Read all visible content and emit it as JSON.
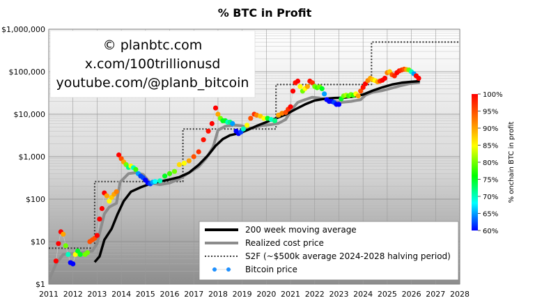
{
  "chart_data": {
    "type": "scatter",
    "title": "% BTC in Profit",
    "y_scale": "log",
    "xlim": [
      2011,
      2028
    ],
    "ylim": [
      1,
      1000000
    ],
    "x_ticks": [
      "2011",
      "2012",
      "2013",
      "2014",
      "2015",
      "2016",
      "2017",
      "2018",
      "2019",
      "2020",
      "2021",
      "2022",
      "2023",
      "2024",
      "2025",
      "2026",
      "2027",
      "2028"
    ],
    "y_ticks": [
      {
        "value": 1,
        "label": "$1"
      },
      {
        "value": 10,
        "label": "$10"
      },
      {
        "value": 100,
        "label": "$100"
      },
      {
        "value": 1000,
        "label": "$1,000"
      },
      {
        "value": 10000,
        "label": "$10,000"
      },
      {
        "value": 100000,
        "label": "$100,000"
      },
      {
        "value": 1000000,
        "label": "$1,000,000"
      }
    ],
    "watermark": [
      "© planbtc.com",
      "x.com/100trillionusd",
      "youtube.com/@planb_bitcoin"
    ],
    "legend": {
      "placement": "bottom-right",
      "entries": [
        {
          "label": "200 week moving average",
          "style": "thick-black-line",
          "color": "#000000"
        },
        {
          "label": "Realized cost price",
          "style": "thick-gray-line",
          "color": "#8c8c8c"
        },
        {
          "label": "S2F (~$500k average 2024-2028 halving period)",
          "style": "dotted-line",
          "color": "#333333"
        },
        {
          "label": "Bitcoin price",
          "style": "dots",
          "color": "#1e90ff"
        }
      ]
    },
    "colorbar": {
      "label": "% onchain BTC in profit",
      "range": [
        60,
        100
      ],
      "tick_labels": [
        "100%",
        "95%",
        "90%",
        "85%",
        "80%",
        "75%",
        "70%",
        "65%",
        "60%"
      ],
      "colors": [
        "#ff0000",
        "#ff8000",
        "#ffff00",
        "#00ff00",
        "#00ffff",
        "#0000ff"
      ]
    },
    "series": [
      {
        "name": "200 week moving average",
        "x": [
          2012.9,
          2013.1,
          2013.3,
          2013.6,
          2013.85,
          2014.1,
          2014.4,
          2014.8,
          2015.2,
          2015.6,
          2016.0,
          2016.4,
          2016.8,
          2017.2,
          2017.6,
          2017.9,
          2018.2,
          2018.5,
          2018.9,
          2019.2,
          2019.6,
          2020.0,
          2020.4,
          2020.8,
          2021.2,
          2021.6,
          2022.0,
          2022.4,
          2022.8,
          2023.2,
          2023.6,
          2024.0,
          2024.4,
          2024.8,
          2025.2,
          2025.6,
          2026.0,
          2026.35
        ],
        "y": [
          3.3,
          4.5,
          11,
          20,
          45,
          90,
          150,
          190,
          230,
          260,
          290,
          330,
          420,
          640,
          1100,
          1800,
          2600,
          3200,
          3600,
          4200,
          5300,
          6500,
          8000,
          9800,
          13000,
          17000,
          21000,
          23000,
          24000,
          24500,
          26000,
          29000,
          36000,
          43000,
          50000,
          55000,
          58000,
          60000
        ]
      },
      {
        "name": "Realized cost price",
        "x": [
          2011.0,
          2011.3,
          2011.6,
          2012.0,
          2012.4,
          2012.8,
          2013.0,
          2013.3,
          2013.5,
          2013.8,
          2013.95,
          2014.3,
          2014.6,
          2014.9,
          2015.2,
          2015.6,
          2016.0,
          2016.4,
          2016.8,
          2017.2,
          2017.5,
          2017.8,
          2018.0,
          2018.3,
          2018.7,
          2019.0,
          2019.3,
          2019.5,
          2019.8,
          2020.2,
          2020.5,
          2020.8,
          2021.1,
          2021.3,
          2021.6,
          2021.9,
          2022.2,
          2022.5,
          2022.8,
          2023.1,
          2023.5,
          2023.9,
          2024.1,
          2024.4,
          2024.8,
          2025.1,
          2025.5,
          2025.9,
          2026.35
        ],
        "y": [
          1.2,
          3,
          5,
          5.2,
          5.5,
          6,
          9,
          45,
          65,
          80,
          250,
          400,
          420,
          380,
          240,
          220,
          240,
          300,
          420,
          580,
          900,
          1700,
          4200,
          5200,
          5500,
          5300,
          4700,
          4800,
          5400,
          5700,
          6100,
          7500,
          14000,
          19000,
          22000,
          25000,
          24000,
          22000,
          20000,
          19000,
          20000,
          22000,
          28000,
          33000,
          36000,
          40000,
          46000,
          52000,
          56000
        ]
      },
      {
        "name": "S2F (~$500k average 2024-2028 halving period)",
        "x": [
          2011.0,
          2012.9,
          2012.9,
          2016.55,
          2016.55,
          2020.4,
          2020.4,
          2024.35,
          2024.35,
          2028.0
        ],
        "y": [
          7,
          7,
          260,
          260,
          4500,
          4500,
          50000,
          50000,
          500000,
          500000
        ]
      },
      {
        "name": "Bitcoin price",
        "x": [
          2011.3,
          2011.4,
          2011.5,
          2011.6,
          2011.7,
          2011.8,
          2011.9,
          2012.0,
          2012.1,
          2012.2,
          2012.3,
          2012.5,
          2012.6,
          2012.7,
          2012.8,
          2012.9,
          2013.0,
          2013.1,
          2013.2,
          2013.3,
          2013.4,
          2013.5,
          2013.6,
          2013.7,
          2013.8,
          2013.9,
          2014.0,
          2014.1,
          2014.2,
          2014.3,
          2014.4,
          2014.5,
          2014.6,
          2014.7,
          2014.8,
          2014.9,
          2015.0,
          2015.1,
          2015.2,
          2015.3,
          2015.4,
          2015.6,
          2015.8,
          2016.0,
          2016.2,
          2016.4,
          2016.6,
          2016.8,
          2017.0,
          2017.2,
          2017.4,
          2017.6,
          2017.75,
          2017.9,
          2018.0,
          2018.1,
          2018.2,
          2018.3,
          2018.4,
          2018.5,
          2018.6,
          2018.75,
          2018.85,
          2018.95,
          2019.05,
          2019.2,
          2019.35,
          2019.5,
          2019.6,
          2019.75,
          2019.9,
          2020.05,
          2020.2,
          2020.35,
          2020.5,
          2020.65,
          2020.8,
          2020.9,
          2021.0,
          2021.1,
          2021.2,
          2021.3,
          2021.4,
          2021.5,
          2021.6,
          2021.7,
          2021.8,
          2021.9,
          2022.0,
          2022.1,
          2022.2,
          2022.3,
          2022.4,
          2022.5,
          2022.6,
          2022.7,
          2022.8,
          2022.9,
          2023.0,
          2023.1,
          2023.2,
          2023.3,
          2023.4,
          2023.5,
          2023.6,
          2023.7,
          2023.8,
          2023.9,
          2024.0,
          2024.1,
          2024.2,
          2024.3,
          2024.4,
          2024.5,
          2024.6,
          2024.7,
          2024.8,
          2024.9,
          2025.0,
          2025.1,
          2025.2,
          2025.3,
          2025.4,
          2025.5,
          2025.6,
          2025.7,
          2025.8,
          2025.9,
          2026.0,
          2026.1,
          2026.2,
          2026.3
        ],
        "y": [
          3.5,
          9,
          17,
          15,
          8,
          5,
          3.2,
          3,
          5,
          6,
          5,
          5,
          5.5,
          10,
          11,
          12,
          14,
          34,
          60,
          140,
          120,
          90,
          110,
          130,
          150,
          1100,
          900,
          750,
          650,
          560,
          600,
          550,
          500,
          400,
          350,
          320,
          280,
          240,
          230,
          250,
          260,
          270,
          350,
          400,
          450,
          650,
          700,
          800,
          1000,
          1300,
          2500,
          4000,
          6000,
          14000,
          10000,
          8000,
          7000,
          7000,
          6500,
          6500,
          6000,
          4000,
          3500,
          3800,
          4500,
          5500,
          8000,
          10000,
          9500,
          9000,
          8000,
          8000,
          7500,
          7000,
          9500,
          10500,
          11000,
          13000,
          15000,
          35000,
          55000,
          60000,
          45000,
          35000,
          40000,
          45000,
          60000,
          55000,
          45000,
          42000,
          44000,
          40000,
          30000,
          22000,
          20000,
          20000,
          19000,
          17000,
          17000,
          23000,
          27000,
          28000,
          27000,
          29000,
          28000,
          30000,
          27000,
          35000,
          43000,
          52000,
          62000,
          70000,
          65000,
          62000,
          58000,
          60000,
          63000,
          70000,
          95000,
          100000,
          85000,
          80000,
          95000,
          105000,
          110000,
          115000,
          112000,
          110000,
          100000,
          90000,
          80000,
          70000
        ],
        "pct_in_profit": [
          100,
          100,
          100,
          90,
          80,
          70,
          60,
          60,
          85,
          75,
          75,
          80,
          80,
          95,
          95,
          95,
          100,
          100,
          100,
          100,
          90,
          85,
          88,
          90,
          92,
          100,
          95,
          90,
          80,
          72,
          85,
          70,
          78,
          65,
          62,
          62,
          60,
          60,
          62,
          65,
          68,
          70,
          75,
          78,
          80,
          87,
          85,
          90,
          95,
          97,
          99,
          99,
          100,
          100,
          90,
          80,
          75,
          75,
          70,
          72,
          65,
          60,
          60,
          62,
          70,
          85,
          95,
          97,
          92,
          88,
          85,
          75,
          70,
          72,
          90,
          92,
          95,
          97,
          100,
          100,
          99,
          100,
          85,
          80,
          85,
          90,
          99,
          97,
          80,
          78,
          80,
          75,
          65,
          60,
          60,
          60,
          62,
          60,
          60,
          75,
          80,
          82,
          78,
          80,
          78,
          85,
          90,
          95,
          99,
          100,
          92,
          90,
          88,
          85,
          90,
          97,
          100,
          100,
          92,
          88,
          95,
          98,
          100,
          99,
          97,
          95,
          90,
          80,
          70,
          65
        ]
      }
    ]
  }
}
